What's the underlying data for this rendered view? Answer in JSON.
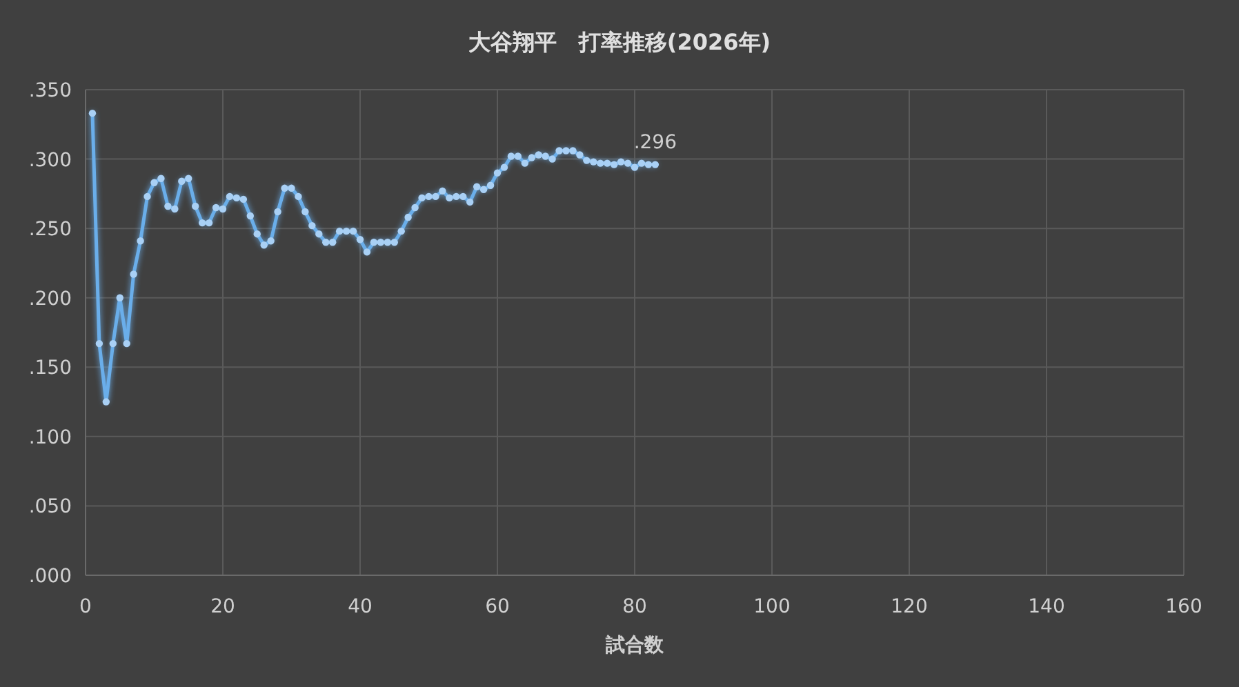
{
  "chart_data": {
    "type": "line",
    "title": "大谷翔平　打率推移(2026年)",
    "xlabel": "試合数",
    "x": [
      1,
      2,
      3,
      4,
      5,
      6,
      7,
      8,
      9,
      10,
      11,
      12,
      13,
      14,
      15,
      16,
      17,
      18,
      19,
      20,
      21,
      22,
      23,
      24,
      25,
      26,
      27,
      28,
      29,
      30,
      31,
      32,
      33,
      34,
      35,
      36,
      37,
      38,
      39,
      40,
      41,
      42,
      43,
      44,
      45,
      46,
      47,
      48,
      49,
      50,
      51,
      52,
      53,
      54,
      55,
      56,
      57,
      58,
      59,
      60,
      61,
      62,
      63,
      64,
      65,
      66,
      67,
      68,
      69,
      70,
      71,
      72,
      73,
      74,
      75,
      76,
      77,
      78,
      79,
      80,
      81,
      82,
      83
    ],
    "series": [
      {
        "color": "#6aaeea",
        "values": [
          0.333,
          0.167,
          0.125,
          0.167,
          0.2,
          0.167,
          0.217,
          0.241,
          0.273,
          0.283,
          0.286,
          0.266,
          0.264,
          0.284,
          0.286,
          0.266,
          0.254,
          0.254,
          0.265,
          0.264,
          0.273,
          0.272,
          0.271,
          0.259,
          0.246,
          0.238,
          0.241,
          0.262,
          0.279,
          0.279,
          0.273,
          0.262,
          0.252,
          0.246,
          0.24,
          0.24,
          0.248,
          0.248,
          0.248,
          0.242,
          0.233,
          0.24,
          0.24,
          0.24,
          0.24,
          0.248,
          0.258,
          0.265,
          0.272,
          0.273,
          0.273,
          0.277,
          0.272,
          0.273,
          0.273,
          0.269,
          0.28,
          0.278,
          0.281,
          0.29,
          0.294,
          0.302,
          0.302,
          0.297,
          0.301,
          0.303,
          0.302,
          0.3,
          0.306,
          0.306,
          0.306,
          0.303,
          0.299,
          0.298,
          0.297,
          0.297,
          0.296,
          0.298,
          0.297,
          0.294,
          0.297,
          0.296,
          0.296
        ]
      }
    ],
    "xlim": [
      0,
      160
    ],
    "xticks": [
      0,
      20,
      40,
      60,
      80,
      100,
      120,
      140,
      160
    ],
    "ylim": [
      0,
      0.35
    ],
    "yticks": [
      {
        "value": 0,
        "label": ".000"
      },
      {
        "value": 0.05,
        "label": ".050"
      },
      {
        "value": 0.1,
        "label": ".100"
      },
      {
        "value": 0.15,
        "label": ".150"
      },
      {
        "value": 0.2,
        "label": ".200"
      },
      {
        "value": 0.25,
        "label": ".250"
      },
      {
        "value": 0.3,
        "label": ".300"
      },
      {
        "value": 0.35,
        "label": ".350"
      }
    ],
    "grid": true,
    "marker": "circle",
    "line_style": "solid",
    "annotations": [
      {
        "text": ".296",
        "x": 83,
        "y": 0.296
      }
    ]
  }
}
